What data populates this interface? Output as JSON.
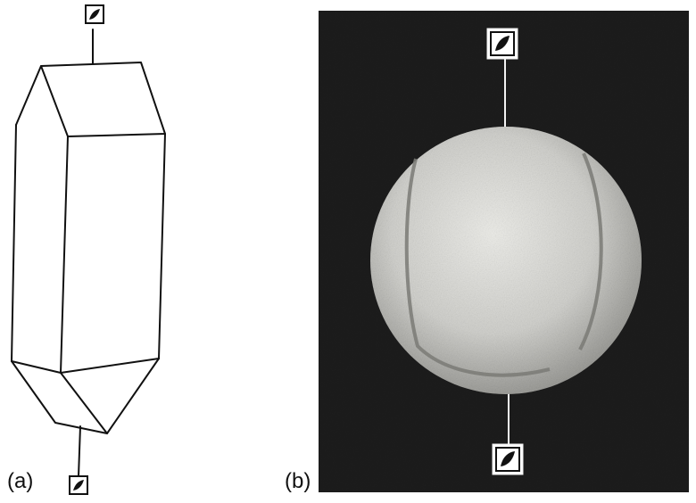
{
  "figure": {
    "panels": [
      {
        "id": "a",
        "label": "(a)",
        "subject": "crystal-drawing"
      },
      {
        "id": "b",
        "label": "(b)",
        "subject": "tennis-ball-photo"
      }
    ],
    "icons": [
      "symmetry-axis-symbol-icon"
    ],
    "colors": {
      "line": "#111111",
      "photo_background": "#222222",
      "ball": "#d8d8d4",
      "seam": "#7a7a76"
    }
  }
}
